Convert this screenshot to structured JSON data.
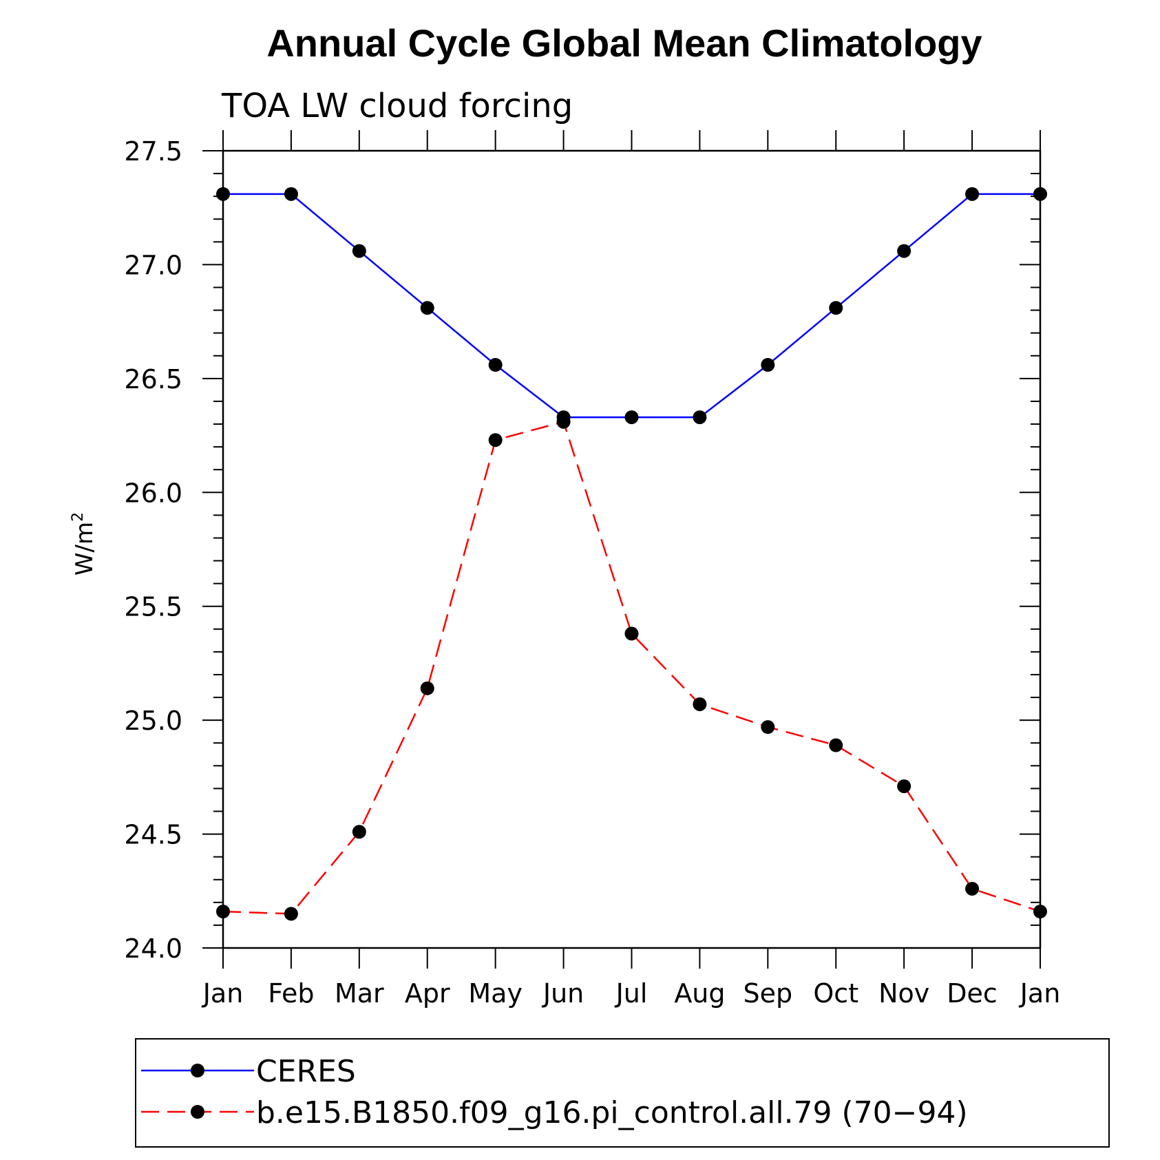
{
  "chart_data": {
    "type": "line",
    "title": "Annual Cycle Global Mean Climatology",
    "subtitle": "TOA LW cloud forcing",
    "ylabel": "W/m",
    "ylabel_superscript": "2",
    "ylim": [
      24.0,
      27.5
    ],
    "yticks": [
      "24.0",
      "24.5",
      "25.0",
      "25.5",
      "26.0",
      "26.5",
      "27.0",
      "27.5"
    ],
    "categories": [
      "Jan",
      "Feb",
      "Mar",
      "Apr",
      "May",
      "Jun",
      "Jul",
      "Aug",
      "Sep",
      "Oct",
      "Nov",
      "Dec",
      "Jan"
    ],
    "series": [
      {
        "name": "CERES",
        "color": "#0000ff",
        "dash": "solid",
        "values": [
          27.31,
          27.31,
          27.06,
          26.81,
          26.56,
          26.33,
          26.33,
          26.33,
          26.56,
          26.81,
          27.06,
          27.31,
          27.31
        ]
      },
      {
        "name": "b.e15.B1850.f09_g16.pi_control.all.79 (70−94)",
        "color": "#ff0000",
        "dash": "dashed",
        "values": [
          24.16,
          24.15,
          24.51,
          25.14,
          26.23,
          26.31,
          25.38,
          25.07,
          24.97,
          24.89,
          24.71,
          24.26,
          24.16
        ]
      }
    ],
    "marker_color": "#000000",
    "legend_position": "bottom"
  }
}
